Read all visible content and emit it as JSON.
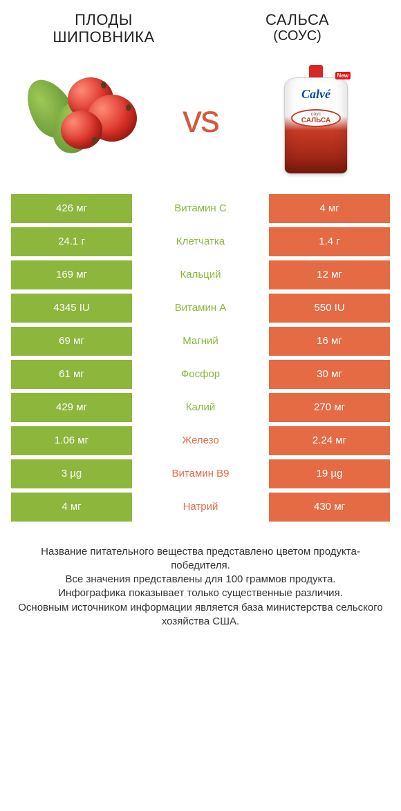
{
  "colors": {
    "green": "#8cb63c",
    "orange": "#e56b45",
    "mid_bg": "#ffffff",
    "text_dark": "#333333"
  },
  "header": {
    "left_title": "ПЛОДЫ\nШИПОВНИКА",
    "right_title": "САЛЬСА",
    "right_sub": "(СОУС)"
  },
  "vs_label": "vs",
  "pouch": {
    "new_badge": "New",
    "brand": "Calvé",
    "label_small": "соус",
    "label_main": "САЛЬСА"
  },
  "rows": [
    {
      "left": "426 мг",
      "mid": "Витамин C",
      "right": "4 мг",
      "winner": "left"
    },
    {
      "left": "24.1 г",
      "mid": "Клетчатка",
      "right": "1.4 г",
      "winner": "left"
    },
    {
      "left": "169 мг",
      "mid": "Кальций",
      "right": "12 мг",
      "winner": "left"
    },
    {
      "left": "4345 IU",
      "mid": "Витамин A",
      "right": "550 IU",
      "winner": "left"
    },
    {
      "left": "69 мг",
      "mid": "Магний",
      "right": "16 мг",
      "winner": "left"
    },
    {
      "left": "61 мг",
      "mid": "Фосфор",
      "right": "30 мг",
      "winner": "left"
    },
    {
      "left": "429 мг",
      "mid": "Калий",
      "right": "270 мг",
      "winner": "left"
    },
    {
      "left": "1.06 мг",
      "mid": "Железо",
      "right": "2.24 мг",
      "winner": "right"
    },
    {
      "left": "3 µg",
      "mid": "Витамин B9",
      "right": "19 µg",
      "winner": "right"
    },
    {
      "left": "4 мг",
      "mid": "Натрий",
      "right": "430 мг",
      "winner": "right"
    }
  ],
  "footer": {
    "line1": "Название питательного вещества представлено цветом продукта-победителя.",
    "line2": "Все значения представлены для 100 граммов продукта.",
    "line3": "Инфографика показывает только существенные различия.",
    "line4": "Основным источником информации является база министерства сельского хозяйства США."
  }
}
